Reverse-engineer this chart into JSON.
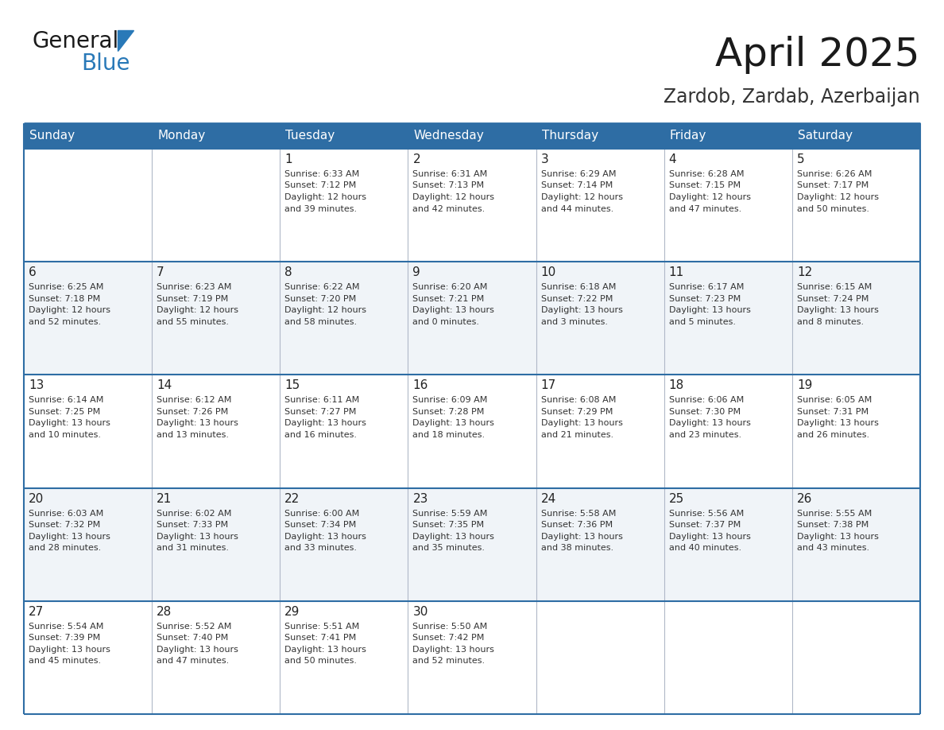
{
  "title": "April 2025",
  "subtitle": "Zardob, Zardab, Azerbaijan",
  "header_color": "#2E6DA4",
  "header_text_color": "#FFFFFF",
  "border_color": "#2E6DA4",
  "row_bg_colors": [
    "#FFFFFF",
    "#F0F4F8"
  ],
  "text_color": "#333333",
  "days_of_week": [
    "Sunday",
    "Monday",
    "Tuesday",
    "Wednesday",
    "Thursday",
    "Friday",
    "Saturday"
  ],
  "weeks": [
    [
      {
        "day": "",
        "info": ""
      },
      {
        "day": "",
        "info": ""
      },
      {
        "day": "1",
        "info": "Sunrise: 6:33 AM\nSunset: 7:12 PM\nDaylight: 12 hours\nand 39 minutes."
      },
      {
        "day": "2",
        "info": "Sunrise: 6:31 AM\nSunset: 7:13 PM\nDaylight: 12 hours\nand 42 minutes."
      },
      {
        "day": "3",
        "info": "Sunrise: 6:29 AM\nSunset: 7:14 PM\nDaylight: 12 hours\nand 44 minutes."
      },
      {
        "day": "4",
        "info": "Sunrise: 6:28 AM\nSunset: 7:15 PM\nDaylight: 12 hours\nand 47 minutes."
      },
      {
        "day": "5",
        "info": "Sunrise: 6:26 AM\nSunset: 7:17 PM\nDaylight: 12 hours\nand 50 minutes."
      }
    ],
    [
      {
        "day": "6",
        "info": "Sunrise: 6:25 AM\nSunset: 7:18 PM\nDaylight: 12 hours\nand 52 minutes."
      },
      {
        "day": "7",
        "info": "Sunrise: 6:23 AM\nSunset: 7:19 PM\nDaylight: 12 hours\nand 55 minutes."
      },
      {
        "day": "8",
        "info": "Sunrise: 6:22 AM\nSunset: 7:20 PM\nDaylight: 12 hours\nand 58 minutes."
      },
      {
        "day": "9",
        "info": "Sunrise: 6:20 AM\nSunset: 7:21 PM\nDaylight: 13 hours\nand 0 minutes."
      },
      {
        "day": "10",
        "info": "Sunrise: 6:18 AM\nSunset: 7:22 PM\nDaylight: 13 hours\nand 3 minutes."
      },
      {
        "day": "11",
        "info": "Sunrise: 6:17 AM\nSunset: 7:23 PM\nDaylight: 13 hours\nand 5 minutes."
      },
      {
        "day": "12",
        "info": "Sunrise: 6:15 AM\nSunset: 7:24 PM\nDaylight: 13 hours\nand 8 minutes."
      }
    ],
    [
      {
        "day": "13",
        "info": "Sunrise: 6:14 AM\nSunset: 7:25 PM\nDaylight: 13 hours\nand 10 minutes."
      },
      {
        "day": "14",
        "info": "Sunrise: 6:12 AM\nSunset: 7:26 PM\nDaylight: 13 hours\nand 13 minutes."
      },
      {
        "day": "15",
        "info": "Sunrise: 6:11 AM\nSunset: 7:27 PM\nDaylight: 13 hours\nand 16 minutes."
      },
      {
        "day": "16",
        "info": "Sunrise: 6:09 AM\nSunset: 7:28 PM\nDaylight: 13 hours\nand 18 minutes."
      },
      {
        "day": "17",
        "info": "Sunrise: 6:08 AM\nSunset: 7:29 PM\nDaylight: 13 hours\nand 21 minutes."
      },
      {
        "day": "18",
        "info": "Sunrise: 6:06 AM\nSunset: 7:30 PM\nDaylight: 13 hours\nand 23 minutes."
      },
      {
        "day": "19",
        "info": "Sunrise: 6:05 AM\nSunset: 7:31 PM\nDaylight: 13 hours\nand 26 minutes."
      }
    ],
    [
      {
        "day": "20",
        "info": "Sunrise: 6:03 AM\nSunset: 7:32 PM\nDaylight: 13 hours\nand 28 minutes."
      },
      {
        "day": "21",
        "info": "Sunrise: 6:02 AM\nSunset: 7:33 PM\nDaylight: 13 hours\nand 31 minutes."
      },
      {
        "day": "22",
        "info": "Sunrise: 6:00 AM\nSunset: 7:34 PM\nDaylight: 13 hours\nand 33 minutes."
      },
      {
        "day": "23",
        "info": "Sunrise: 5:59 AM\nSunset: 7:35 PM\nDaylight: 13 hours\nand 35 minutes."
      },
      {
        "day": "24",
        "info": "Sunrise: 5:58 AM\nSunset: 7:36 PM\nDaylight: 13 hours\nand 38 minutes."
      },
      {
        "day": "25",
        "info": "Sunrise: 5:56 AM\nSunset: 7:37 PM\nDaylight: 13 hours\nand 40 minutes."
      },
      {
        "day": "26",
        "info": "Sunrise: 5:55 AM\nSunset: 7:38 PM\nDaylight: 13 hours\nand 43 minutes."
      }
    ],
    [
      {
        "day": "27",
        "info": "Sunrise: 5:54 AM\nSunset: 7:39 PM\nDaylight: 13 hours\nand 45 minutes."
      },
      {
        "day": "28",
        "info": "Sunrise: 5:52 AM\nSunset: 7:40 PM\nDaylight: 13 hours\nand 47 minutes."
      },
      {
        "day": "29",
        "info": "Sunrise: 5:51 AM\nSunset: 7:41 PM\nDaylight: 13 hours\nand 50 minutes."
      },
      {
        "day": "30",
        "info": "Sunrise: 5:50 AM\nSunset: 7:42 PM\nDaylight: 13 hours\nand 52 minutes."
      },
      {
        "day": "",
        "info": ""
      },
      {
        "day": "",
        "info": ""
      },
      {
        "day": "",
        "info": ""
      }
    ]
  ],
  "logo_general_color": "#1a1a1a",
  "logo_blue_color": "#2979B8",
  "logo_triangle_color": "#2979B8",
  "title_fontsize": 36,
  "subtitle_fontsize": 17,
  "dow_fontsize": 11,
  "day_num_fontsize": 11,
  "info_fontsize": 8
}
